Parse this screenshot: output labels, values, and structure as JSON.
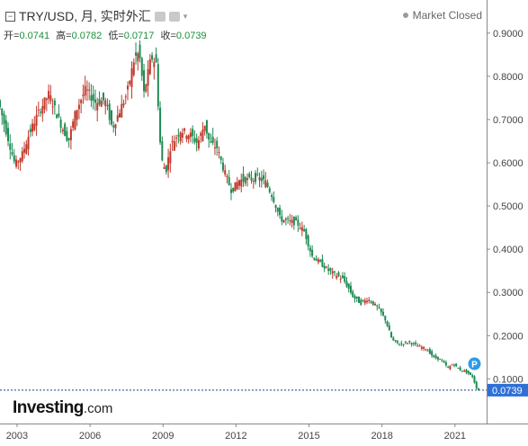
{
  "header": {
    "title": "TRY/USD, 月, 实时外汇",
    "ohlc": [
      {
        "label": "开=",
        "value": "0.0741"
      },
      {
        "label": "高=",
        "value": "0.0782"
      },
      {
        "label": "低=",
        "value": "0.0717"
      },
      {
        "label": "收=",
        "value": "0.0739"
      }
    ],
    "market_status": "Market Closed",
    "collapse_icon": "minus-box-icon",
    "eye_icon": "eye-icon",
    "settings_icon": "gear-icon"
  },
  "logo": {
    "brand": "Investing",
    "suffix": ".com"
  },
  "colors": {
    "up": "#c0392b",
    "down": "#1f8a53",
    "axis": "#999999",
    "last_price_line": "#1f3a93",
    "price_tag": "#2f6fd6",
    "marker": "#2e9be8"
  },
  "chart_data": {
    "type": "candlestick",
    "y_axis": {
      "position": "right",
      "ticks": [
        0.9,
        0.8,
        0.7,
        0.6,
        0.5,
        0.4,
        0.3,
        0.2,
        0.1
      ],
      "tick_labels": [
        "0.9000",
        "0.8000",
        "0.7000",
        "0.6000",
        "0.5000",
        "0.4000",
        "0.3000",
        "0.2000",
        "0.1000"
      ],
      "range": [
        0.03,
        0.935
      ]
    },
    "x_axis": {
      "ticks": [
        2003,
        2006,
        2009,
        2012,
        2015,
        2018,
        2021
      ],
      "tick_labels": [
        "2003",
        "2006",
        "2009",
        "2012",
        "2015",
        "2018",
        "2021"
      ],
      "range": [
        2002.3,
        2022.3
      ]
    },
    "last_price": {
      "value": 0.0739,
      "label": "0.0739"
    },
    "marker": {
      "label": "P",
      "year": 2021.8,
      "value": 0.135
    },
    "price_path": [
      [
        2002.3,
        0.745
      ],
      [
        2002.7,
        0.66
      ],
      [
        2003.0,
        0.595
      ],
      [
        2003.3,
        0.62
      ],
      [
        2003.6,
        0.67
      ],
      [
        2004.0,
        0.72
      ],
      [
        2004.4,
        0.76
      ],
      [
        2004.8,
        0.7
      ],
      [
        2005.2,
        0.65
      ],
      [
        2005.5,
        0.72
      ],
      [
        2005.9,
        0.77
      ],
      [
        2006.3,
        0.74
      ],
      [
        2006.7,
        0.745
      ],
      [
        2007.0,
        0.68
      ],
      [
        2007.3,
        0.72
      ],
      [
        2007.6,
        0.76
      ],
      [
        2007.9,
        0.84
      ],
      [
        2008.1,
        0.855
      ],
      [
        2008.3,
        0.76
      ],
      [
        2008.6,
        0.845
      ],
      [
        2008.8,
        0.83
      ],
      [
        2009.0,
        0.61
      ],
      [
        2009.2,
        0.58
      ],
      [
        2009.4,
        0.64
      ],
      [
        2009.8,
        0.675
      ],
      [
        2010.2,
        0.665
      ],
      [
        2010.5,
        0.645
      ],
      [
        2010.8,
        0.69
      ],
      [
        2011.0,
        0.645
      ],
      [
        2011.3,
        0.635
      ],
      [
        2011.6,
        0.58
      ],
      [
        2011.9,
        0.535
      ],
      [
        2012.2,
        0.56
      ],
      [
        2012.6,
        0.56
      ],
      [
        2013.0,
        0.565
      ],
      [
        2013.3,
        0.555
      ],
      [
        2013.6,
        0.52
      ],
      [
        2013.9,
        0.47
      ],
      [
        2014.2,
        0.465
      ],
      [
        2014.6,
        0.46
      ],
      [
        2014.9,
        0.44
      ],
      [
        2015.2,
        0.385
      ],
      [
        2015.5,
        0.37
      ],
      [
        2015.9,
        0.35
      ],
      [
        2016.2,
        0.34
      ],
      [
        2016.5,
        0.33
      ],
      [
        2016.9,
        0.29
      ],
      [
        2017.2,
        0.275
      ],
      [
        2017.5,
        0.285
      ],
      [
        2017.9,
        0.265
      ],
      [
        2018.2,
        0.24
      ],
      [
        2018.5,
        0.19
      ],
      [
        2018.8,
        0.18
      ],
      [
        2019.2,
        0.185
      ],
      [
        2019.6,
        0.175
      ],
      [
        2019.9,
        0.17
      ],
      [
        2020.2,
        0.15
      ],
      [
        2020.5,
        0.145
      ],
      [
        2020.8,
        0.125
      ],
      [
        2021.0,
        0.135
      ],
      [
        2021.3,
        0.12
      ],
      [
        2021.5,
        0.118
      ],
      [
        2021.8,
        0.105
      ],
      [
        2022.0,
        0.074
      ]
    ]
  }
}
